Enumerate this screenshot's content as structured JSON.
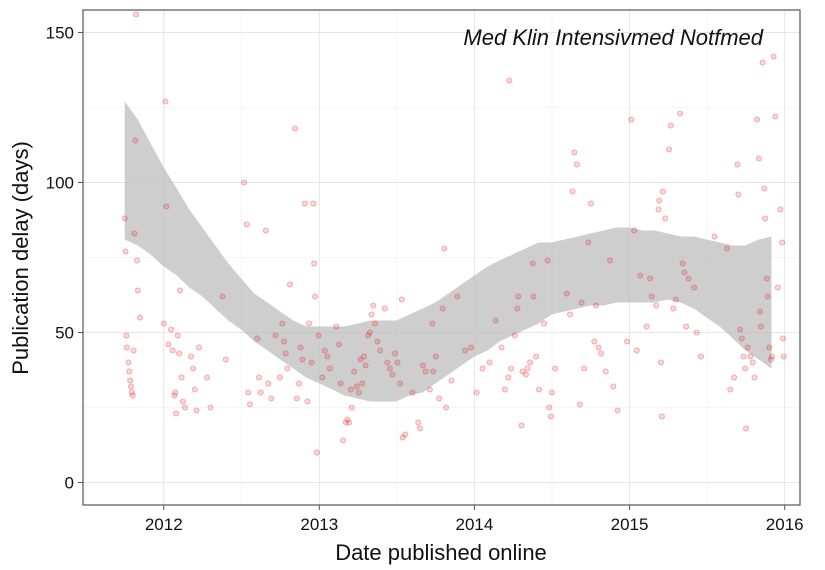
{
  "chart_data": {
    "type": "scatter",
    "title": "Med Klin Intensivmed Notfmed",
    "xlabel": "Date published online",
    "ylabel": "Publication delay (days)",
    "xlim": [
      "2011-06-25",
      "2016-02-06"
    ],
    "ylim": [
      -7.5,
      157.5
    ],
    "x_ticks": [
      "2012",
      "2013",
      "2014",
      "2015",
      "2016"
    ],
    "x_tick_dates": [
      "2012-01-01",
      "2013-01-01",
      "2014-01-01",
      "2015-01-01",
      "2016-01-01"
    ],
    "y_ticks": [
      0,
      50,
      100,
      150
    ],
    "grid": true,
    "point_color": "#e41a1c",
    "ribbon_color": "#bdbdbd",
    "points": [
      [
        "2011-10-01",
        88
      ],
      [
        "2011-10-03",
        77
      ],
      [
        "2011-10-05",
        49
      ],
      [
        "2011-10-06",
        45
      ],
      [
        "2011-10-10",
        40
      ],
      [
        "2011-10-12",
        37
      ],
      [
        "2011-10-14",
        34
      ],
      [
        "2011-10-16",
        32
      ],
      [
        "2011-10-18",
        30
      ],
      [
        "2011-10-20",
        29
      ],
      [
        "2011-10-22",
        44
      ],
      [
        "2011-10-24",
        83
      ],
      [
        "2011-10-26",
        114
      ],
      [
        "2011-10-28",
        156
      ],
      [
        "2011-10-30",
        74
      ],
      [
        "2011-11-01",
        64
      ],
      [
        "2011-11-06",
        55
      ],
      [
        "2012-01-01",
        53
      ],
      [
        "2012-01-05",
        127
      ],
      [
        "2012-01-07",
        92
      ],
      [
        "2012-01-12",
        46
      ],
      [
        "2012-01-18",
        51
      ],
      [
        "2012-01-22",
        44
      ],
      [
        "2012-01-26",
        29
      ],
      [
        "2012-01-28",
        30
      ],
      [
        "2012-01-30",
        23
      ],
      [
        "2012-02-03",
        49
      ],
      [
        "2012-02-06",
        43
      ],
      [
        "2012-02-08",
        64
      ],
      [
        "2012-02-12",
        35
      ],
      [
        "2012-02-15",
        27
      ],
      [
        "2012-02-20",
        25
      ],
      [
        "2012-03-05",
        42
      ],
      [
        "2012-03-10",
        38
      ],
      [
        "2012-03-14",
        31
      ],
      [
        "2012-03-18",
        24
      ],
      [
        "2012-03-24",
        45
      ],
      [
        "2012-04-12",
        35
      ],
      [
        "2012-04-20",
        25
      ],
      [
        "2012-05-18",
        62
      ],
      [
        "2012-05-26",
        41
      ],
      [
        "2012-07-08",
        100
      ],
      [
        "2012-07-14",
        86
      ],
      [
        "2012-07-18",
        30
      ],
      [
        "2012-07-22",
        26
      ],
      [
        "2012-08-08",
        48
      ],
      [
        "2012-08-12",
        35
      ],
      [
        "2012-08-16",
        30
      ],
      [
        "2012-08-28",
        84
      ],
      [
        "2012-09-03",
        33
      ],
      [
        "2012-09-10",
        28
      ],
      [
        "2012-09-20",
        49
      ],
      [
        "2012-09-30",
        35
      ],
      [
        "2012-10-06",
        53
      ],
      [
        "2012-10-10",
        47
      ],
      [
        "2012-10-14",
        43
      ],
      [
        "2012-10-18",
        38
      ],
      [
        "2012-10-24",
        66
      ],
      [
        "2012-11-05",
        118
      ],
      [
        "2012-11-09",
        28
      ],
      [
        "2012-11-14",
        33
      ],
      [
        "2012-11-18",
        45
      ],
      [
        "2012-11-22",
        41
      ],
      [
        "2012-11-28",
        93
      ],
      [
        "2012-12-04",
        27
      ],
      [
        "2012-12-08",
        53
      ],
      [
        "2012-12-14",
        40
      ],
      [
        "2012-12-18",
        93
      ],
      [
        "2012-12-20",
        73
      ],
      [
        "2012-12-22",
        62
      ],
      [
        "2012-12-26",
        10
      ],
      [
        "2012-12-30",
        49
      ],
      [
        "2013-01-08",
        35
      ],
      [
        "2013-01-14",
        44
      ],
      [
        "2013-01-20",
        42
      ],
      [
        "2013-01-26",
        38
      ],
      [
        "2013-02-10",
        52
      ],
      [
        "2013-02-16",
        46
      ],
      [
        "2013-02-20",
        33
      ],
      [
        "2013-02-26",
        14
      ],
      [
        "2013-03-04",
        20
      ],
      [
        "2013-03-08",
        21
      ],
      [
        "2013-03-12",
        20
      ],
      [
        "2013-03-16",
        31
      ],
      [
        "2013-03-18",
        25
      ],
      [
        "2013-03-24",
        37
      ],
      [
        "2013-03-30",
        32
      ],
      [
        "2013-04-04",
        30
      ],
      [
        "2013-04-08",
        41
      ],
      [
        "2013-04-12",
        33
      ],
      [
        "2013-04-16",
        42
      ],
      [
        "2013-04-20",
        39
      ],
      [
        "2013-04-26",
        49
      ],
      [
        "2013-04-30",
        50
      ],
      [
        "2013-05-04",
        56
      ],
      [
        "2013-05-08",
        59
      ],
      [
        "2013-05-12",
        53
      ],
      [
        "2013-05-18",
        47
      ],
      [
        "2013-05-24",
        44
      ],
      [
        "2013-06-04",
        58
      ],
      [
        "2013-06-10",
        40
      ],
      [
        "2013-06-16",
        38
      ],
      [
        "2013-06-22",
        36
      ],
      [
        "2013-06-28",
        43
      ],
      [
        "2013-07-04",
        40
      ],
      [
        "2013-07-10",
        33
      ],
      [
        "2013-07-14",
        61
      ],
      [
        "2013-07-16",
        15
      ],
      [
        "2013-07-22",
        16
      ],
      [
        "2013-08-08",
        30
      ],
      [
        "2013-08-22",
        20
      ],
      [
        "2013-08-26",
        18
      ],
      [
        "2013-09-02",
        39
      ],
      [
        "2013-09-08",
        37
      ],
      [
        "2013-09-18",
        31
      ],
      [
        "2013-09-24",
        53
      ],
      [
        "2013-09-26",
        37
      ],
      [
        "2013-10-02",
        42
      ],
      [
        "2013-10-10",
        28
      ],
      [
        "2013-10-18",
        58
      ],
      [
        "2013-10-22",
        78
      ],
      [
        "2013-10-26",
        25
      ],
      [
        "2013-11-08",
        34
      ],
      [
        "2013-11-22",
        62
      ],
      [
        "2013-12-10",
        44
      ],
      [
        "2013-12-24",
        45
      ],
      [
        "2014-01-06",
        30
      ],
      [
        "2014-01-20",
        38
      ],
      [
        "2014-02-06",
        40
      ],
      [
        "2014-02-20",
        54
      ],
      [
        "2014-03-06",
        45
      ],
      [
        "2014-03-14",
        31
      ],
      [
        "2014-03-22",
        35
      ],
      [
        "2014-03-24",
        134
      ],
      [
        "2014-03-28",
        38
      ],
      [
        "2014-04-06",
        49
      ],
      [
        "2014-04-12",
        58
      ],
      [
        "2014-04-14",
        62
      ],
      [
        "2014-04-22",
        19
      ],
      [
        "2014-04-24",
        37
      ],
      [
        "2014-05-02",
        36
      ],
      [
        "2014-05-06",
        38
      ],
      [
        "2014-05-12",
        40
      ],
      [
        "2014-05-18",
        73
      ],
      [
        "2014-05-20",
        62
      ],
      [
        "2014-05-26",
        42
      ],
      [
        "2014-06-02",
        31
      ],
      [
        "2014-06-14",
        53
      ],
      [
        "2014-06-22",
        74
      ],
      [
        "2014-06-26",
        25
      ],
      [
        "2014-06-30",
        22
      ],
      [
        "2014-07-02",
        30
      ],
      [
        "2014-07-10",
        38
      ],
      [
        "2014-08-06",
        63
      ],
      [
        "2014-08-14",
        56
      ],
      [
        "2014-08-20",
        97
      ],
      [
        "2014-08-24",
        110
      ],
      [
        "2014-08-30",
        106
      ],
      [
        "2014-09-06",
        26
      ],
      [
        "2014-09-10",
        60
      ],
      [
        "2014-09-16",
        38
      ],
      [
        "2014-09-26",
        80
      ],
      [
        "2014-10-02",
        93
      ],
      [
        "2014-10-10",
        47
      ],
      [
        "2014-10-14",
        59
      ],
      [
        "2014-10-20",
        45
      ],
      [
        "2014-10-26",
        43
      ],
      [
        "2014-11-06",
        37
      ],
      [
        "2014-11-16",
        74
      ],
      [
        "2014-11-24",
        32
      ],
      [
        "2014-12-04",
        24
      ],
      [
        "2014-12-26",
        47
      ],
      [
        "2015-01-05",
        121
      ],
      [
        "2015-01-12",
        84
      ],
      [
        "2015-01-18",
        44
      ],
      [
        "2015-01-26",
        69
      ],
      [
        "2015-02-10",
        52
      ],
      [
        "2015-02-18",
        68
      ],
      [
        "2015-02-22",
        62
      ],
      [
        "2015-03-05",
        59
      ],
      [
        "2015-03-10",
        91
      ],
      [
        "2015-03-12",
        94
      ],
      [
        "2015-03-16",
        40
      ],
      [
        "2015-03-18",
        22
      ],
      [
        "2015-03-20",
        97
      ],
      [
        "2015-03-26",
        88
      ],
      [
        "2015-04-04",
        111
      ],
      [
        "2015-04-08",
        119
      ],
      [
        "2015-04-14",
        58
      ],
      [
        "2015-04-20",
        61
      ],
      [
        "2015-04-30",
        123
      ],
      [
        "2015-05-06",
        73
      ],
      [
        "2015-05-10",
        70
      ],
      [
        "2015-05-14",
        52
      ],
      [
        "2015-05-20",
        68
      ],
      [
        "2015-06-02",
        65
      ],
      [
        "2015-06-08",
        50
      ],
      [
        "2015-06-18",
        42
      ],
      [
        "2015-07-20",
        82
      ],
      [
        "2015-08-18",
        78
      ],
      [
        "2015-08-26",
        31
      ],
      [
        "2015-09-04",
        35
      ],
      [
        "2015-09-12",
        106
      ],
      [
        "2015-09-14",
        96
      ],
      [
        "2015-09-18",
        51
      ],
      [
        "2015-09-22",
        48
      ],
      [
        "2015-09-26",
        42
      ],
      [
        "2015-09-30",
        38
      ],
      [
        "2015-10-02",
        18
      ],
      [
        "2015-10-06",
        45
      ],
      [
        "2015-10-12",
        42
      ],
      [
        "2015-10-18",
        40
      ],
      [
        "2015-10-22",
        35
      ],
      [
        "2015-10-28",
        121
      ],
      [
        "2015-11-01",
        108
      ],
      [
        "2015-11-04",
        57
      ],
      [
        "2015-11-06",
        52
      ],
      [
        "2015-11-10",
        140
      ],
      [
        "2015-11-14",
        98
      ],
      [
        "2015-11-16",
        88
      ],
      [
        "2015-11-20",
        68
      ],
      [
        "2015-11-22",
        62
      ],
      [
        "2015-11-26",
        45
      ],
      [
        "2015-11-30",
        41
      ],
      [
        "2015-12-02",
        42
      ],
      [
        "2015-12-06",
        142
      ],
      [
        "2015-12-10",
        122
      ],
      [
        "2015-12-16",
        65
      ],
      [
        "2015-12-22",
        91
      ],
      [
        "2015-12-26",
        80
      ],
      [
        "2015-12-28",
        48
      ],
      [
        "2015-12-30",
        42
      ]
    ],
    "smooth_band": [
      [
        "2011-10-01",
        81,
        127
      ],
      [
        "2011-11-01",
        79,
        121
      ],
      [
        "2011-12-01",
        76,
        113
      ],
      [
        "2012-01-01",
        72,
        105
      ],
      [
        "2012-02-01",
        69,
        98
      ],
      [
        "2012-03-01",
        65,
        91
      ],
      [
        "2012-04-01",
        62,
        85
      ],
      [
        "2012-05-01",
        58,
        79
      ],
      [
        "2012-06-01",
        54,
        73
      ],
      [
        "2012-07-01",
        51,
        68
      ],
      [
        "2012-08-01",
        47,
        63
      ],
      [
        "2012-09-01",
        44,
        60
      ],
      [
        "2012-10-01",
        41,
        57
      ],
      [
        "2012-11-01",
        38,
        54
      ],
      [
        "2012-12-01",
        35,
        52
      ],
      [
        "2013-01-01",
        33,
        52
      ],
      [
        "2013-02-01",
        31,
        52
      ],
      [
        "2013-03-01",
        29,
        52
      ],
      [
        "2013-04-01",
        28,
        53
      ],
      [
        "2013-05-01",
        27,
        54
      ],
      [
        "2013-06-01",
        27,
        54
      ],
      [
        "2013-07-01",
        27,
        54
      ],
      [
        "2013-08-01",
        29,
        56
      ],
      [
        "2013-09-01",
        30,
        58
      ],
      [
        "2013-10-01",
        33,
        60
      ],
      [
        "2013-11-01",
        36,
        63
      ],
      [
        "2013-12-01",
        39,
        66
      ],
      [
        "2014-01-01",
        42,
        69
      ],
      [
        "2014-02-01",
        44,
        72
      ],
      [
        "2014-03-01",
        47,
        74
      ],
      [
        "2014-04-01",
        49,
        76
      ],
      [
        "2014-05-01",
        51,
        78
      ],
      [
        "2014-06-01",
        53,
        80
      ],
      [
        "2014-07-01",
        56,
        80
      ],
      [
        "2014-08-01",
        57,
        81
      ],
      [
        "2014-09-01",
        58,
        82
      ],
      [
        "2014-10-01",
        59,
        83
      ],
      [
        "2014-11-01",
        59,
        84
      ],
      [
        "2014-12-01",
        60,
        85
      ],
      [
        "2015-01-01",
        60,
        85
      ],
      [
        "2015-02-01",
        60,
        84
      ],
      [
        "2015-03-01",
        60,
        84
      ],
      [
        "2015-04-01",
        61,
        83
      ],
      [
        "2015-05-01",
        60,
        82
      ],
      [
        "2015-06-01",
        58,
        82
      ],
      [
        "2015-07-01",
        55,
        81
      ],
      [
        "2015-08-01",
        52,
        80
      ],
      [
        "2015-09-01",
        48,
        79
      ],
      [
        "2015-10-01",
        44,
        79
      ],
      [
        "2015-11-01",
        41,
        81
      ],
      [
        "2015-12-01",
        38,
        82
      ]
    ]
  }
}
